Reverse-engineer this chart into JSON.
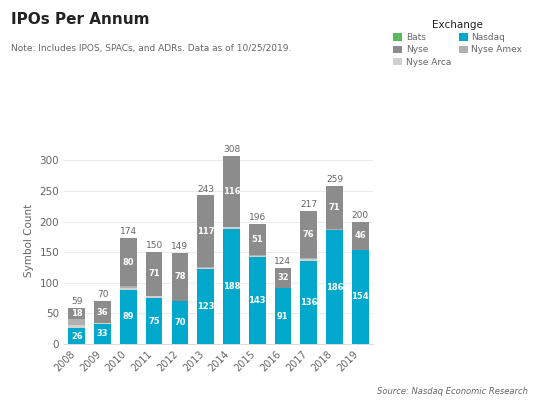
{
  "years": [
    "2008",
    "2009",
    "2010",
    "2011",
    "2012",
    "2013",
    "2014",
    "2015",
    "2016",
    "2017",
    "2018",
    "2019"
  ],
  "nasdaq": [
    26,
    33,
    89,
    75,
    70,
    123,
    188,
    143,
    91,
    136,
    186,
    154
  ],
  "nyse": [
    18,
    36,
    80,
    71,
    78,
    117,
    116,
    51,
    32,
    76,
    71,
    46
  ],
  "nyse_arca": [
    5,
    1,
    3,
    3,
    1,
    2,
    3,
    1,
    0,
    3,
    1,
    0
  ],
  "nyse_amex": [
    10,
    0,
    2,
    1,
    0,
    1,
    1,
    1,
    0,
    2,
    1,
    0
  ],
  "bats": [
    0,
    0,
    0,
    0,
    0,
    0,
    0,
    0,
    1,
    0,
    0,
    0
  ],
  "totals": [
    59,
    70,
    174,
    150,
    149,
    243,
    308,
    196,
    124,
    217,
    259,
    200
  ],
  "nasdaq_labels": [
    26,
    33,
    89,
    75,
    70,
    123,
    188,
    143,
    91,
    136,
    186,
    154
  ],
  "nyse_labels": [
    18,
    36,
    80,
    71,
    78,
    117,
    116,
    51,
    32,
    76,
    71,
    46
  ],
  "color_nasdaq": "#00A8CC",
  "color_nyse": "#8C8C8C",
  "color_nyse_arca": "#D0D0D0",
  "color_nyse_amex": "#B0B0B0",
  "color_bats": "#5CB85C",
  "title": "IPOs Per Annum",
  "note": "Note: Includes IPOS, SPACs, and ADRs. Data as of 10/25/2019.",
  "ylabel": "Symbol Count",
  "source": "Source: Nasdaq Economic Research",
  "bg_color": "#FFFFFF",
  "text_color": "#666666",
  "title_color": "#222222",
  "ylim": [
    0,
    340
  ],
  "fig_width": 5.33,
  "fig_height": 4.0,
  "dpi": 100
}
